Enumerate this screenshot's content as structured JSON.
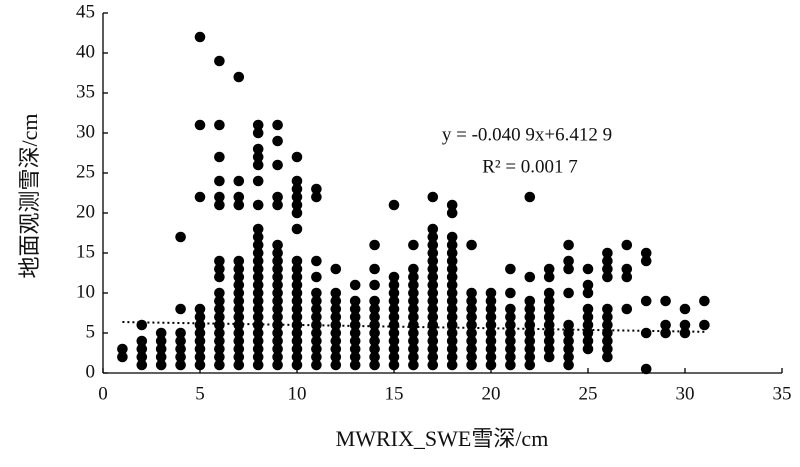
{
  "chart_data": {
    "type": "scatter",
    "xlabel": "MWRIX_SWE雪深/cm",
    "ylabel": "地面观测雪深/cm",
    "equation": "y = -0.040 9x+6.412 9",
    "r2": "R² = 0.001 7",
    "color": "#000000",
    "xlim": [
      0,
      35
    ],
    "xticks": [
      0,
      5,
      10,
      15,
      20,
      25,
      30,
      35
    ],
    "ylim": [
      0,
      45
    ],
    "yticks": [
      0,
      5,
      10,
      15,
      20,
      25,
      30,
      35,
      40,
      45
    ],
    "trendline": {
      "x": [
        1,
        31
      ],
      "y": [
        6.372,
        5.145
      ]
    },
    "columns": [
      {
        "x": 1,
        "y": [
          2,
          3
        ]
      },
      {
        "x": 2,
        "y": [
          1,
          2,
          3,
          4,
          6
        ]
      },
      {
        "x": 3,
        "y": [
          1,
          2,
          3,
          4,
          5
        ]
      },
      {
        "x": 4,
        "y": [
          1,
          2,
          3,
          4,
          5,
          8,
          17
        ]
      },
      {
        "x": 5,
        "y": [
          1,
          2,
          3,
          4,
          5,
          6,
          7,
          8,
          22,
          31,
          42
        ]
      },
      {
        "x": 6,
        "y": [
          1,
          2,
          3,
          4,
          5,
          6,
          7,
          8,
          9,
          10,
          12,
          13,
          14,
          21,
          22,
          24,
          27,
          31,
          39
        ]
      },
      {
        "x": 7,
        "y": [
          1,
          2,
          3,
          4,
          5,
          6,
          7,
          8,
          9,
          10,
          11,
          12,
          13,
          14,
          21,
          22,
          24,
          37
        ]
      },
      {
        "x": 8,
        "y": [
          1,
          2,
          3,
          4,
          5,
          6,
          7,
          8,
          9,
          10,
          11,
          12,
          13,
          14,
          15,
          16,
          17,
          18,
          21,
          24,
          26,
          27,
          28,
          30,
          31
        ]
      },
      {
        "x": 9,
        "y": [
          1,
          2,
          3,
          4,
          5,
          6,
          7,
          8,
          9,
          10,
          11,
          12,
          13,
          14,
          15,
          16,
          21,
          22,
          26,
          29,
          31
        ]
      },
      {
        "x": 10,
        "y": [
          1,
          2,
          3,
          4,
          5,
          6,
          7,
          8,
          9,
          10,
          11,
          12,
          13,
          14,
          18,
          20,
          21,
          22,
          23,
          24,
          27
        ]
      },
      {
        "x": 11,
        "y": [
          1,
          2,
          3,
          4,
          5,
          6,
          7,
          8,
          9,
          10,
          12,
          14,
          22,
          23
        ]
      },
      {
        "x": 12,
        "y": [
          1,
          2,
          3,
          4,
          5,
          6,
          7,
          8,
          9,
          10,
          13
        ]
      },
      {
        "x": 13,
        "y": [
          1,
          2,
          3,
          4,
          5,
          6,
          7,
          8,
          9,
          11
        ]
      },
      {
        "x": 14,
        "y": [
          1,
          2,
          3,
          4,
          5,
          6,
          7,
          8,
          9,
          11,
          13,
          16
        ]
      },
      {
        "x": 15,
        "y": [
          1,
          2,
          3,
          4,
          5,
          6,
          7,
          8,
          9,
          10,
          11,
          12,
          21
        ]
      },
      {
        "x": 16,
        "y": [
          1,
          2,
          3,
          4,
          5,
          6,
          7,
          8,
          9,
          10,
          11,
          12,
          13,
          16
        ]
      },
      {
        "x": 17,
        "y": [
          1,
          2,
          3,
          4,
          5,
          6,
          7,
          8,
          9,
          10,
          11,
          12,
          13,
          14,
          15,
          16,
          17,
          18,
          22
        ]
      },
      {
        "x": 18,
        "y": [
          1,
          2,
          3,
          4,
          5,
          6,
          7,
          8,
          9,
          10,
          11,
          12,
          13,
          14,
          15,
          16,
          17,
          20,
          21
        ]
      },
      {
        "x": 19,
        "y": [
          1,
          2,
          3,
          4,
          5,
          6,
          7,
          8,
          9,
          10,
          16
        ]
      },
      {
        "x": 20,
        "y": [
          1,
          2,
          3,
          4,
          5,
          6,
          7,
          8,
          9,
          10
        ]
      },
      {
        "x": 21,
        "y": [
          1,
          2,
          3,
          4,
          5,
          6,
          7,
          8,
          10,
          13
        ]
      },
      {
        "x": 22,
        "y": [
          1,
          2,
          3,
          4,
          5,
          6,
          7,
          8,
          9,
          12,
          22
        ]
      },
      {
        "x": 23,
        "y": [
          2,
          3,
          4,
          5,
          6,
          7,
          8,
          9,
          10,
          12,
          13
        ]
      },
      {
        "x": 24,
        "y": [
          1,
          2,
          3,
          4,
          5,
          6,
          10,
          13,
          14,
          16
        ]
      },
      {
        "x": 25,
        "y": [
          3,
          4,
          5,
          6,
          7,
          8,
          10,
          11,
          13
        ]
      },
      {
        "x": 26,
        "y": [
          2,
          3,
          4,
          5,
          6,
          7,
          8,
          12,
          13,
          14,
          15
        ]
      },
      {
        "x": 27,
        "y": [
          8,
          12,
          13,
          16
        ]
      },
      {
        "x": 28,
        "y": [
          0.5,
          5,
          9,
          14,
          15
        ]
      },
      {
        "x": 29,
        "y": [
          5,
          6,
          9
        ]
      },
      {
        "x": 30,
        "y": [
          5,
          6,
          8
        ]
      },
      {
        "x": 31,
        "y": [
          6,
          9
        ]
      }
    ]
  }
}
